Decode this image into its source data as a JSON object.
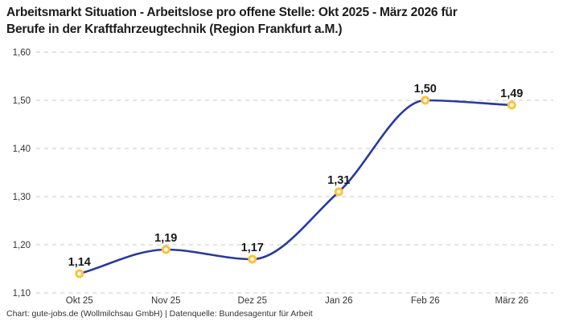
{
  "header": {
    "title_line1": "Arbeitsmarkt Situation - Arbeitslose pro offene Stelle: Okt 2025 - März 2026 für",
    "title_line2": "Berufe in der Kraftfahrzeugtechnik (Region Frankfurt a.M.)"
  },
  "footer": {
    "credit": "Chart: gute-jobs.de (Wollmilchsau GmbH) | Datenquelle: Bundesagentur für Arbeit"
  },
  "chart_data": {
    "type": "line",
    "title": "Arbeitsmarkt Situation - Arbeitslose pro offene Stelle: Okt 2025 - März 2026 für Berufe in der Kraftfahrzeugtechnik (Region Frankfurt a.M.)",
    "categories": [
      "Okt 25",
      "Nov 25",
      "Dez 25",
      "Jan 26",
      "Feb 26",
      "März 26"
    ],
    "values": [
      1.14,
      1.19,
      1.17,
      1.31,
      1.5,
      1.49
    ],
    "value_labels": [
      "1,14",
      "1,19",
      "1,17",
      "1,31",
      "1,50",
      "1,49"
    ],
    "xlabel": "",
    "ylabel": "",
    "ylim": [
      1.1,
      1.6
    ],
    "y_ticks": [
      {
        "value": 1.1,
        "label": "1,10"
      },
      {
        "value": 1.2,
        "label": "1,20"
      },
      {
        "value": 1.3,
        "label": "1,30"
      },
      {
        "value": 1.4,
        "label": "1,40"
      },
      {
        "value": 1.5,
        "label": "1,50"
      },
      {
        "value": 1.6,
        "label": "1,60"
      }
    ],
    "grid": "horizontal-dashed",
    "legend": "none",
    "curve": "smooth-monotone",
    "colors": {
      "line": "#283a9e",
      "marker_ring": "#ffc234",
      "marker_fill": "#ffffff",
      "gridline": "#c8c8c8",
      "value_label_text": "#1a1a1a",
      "axis_text": "#333333",
      "title_text": "#1c1c1c",
      "background": "#ffffff"
    }
  }
}
